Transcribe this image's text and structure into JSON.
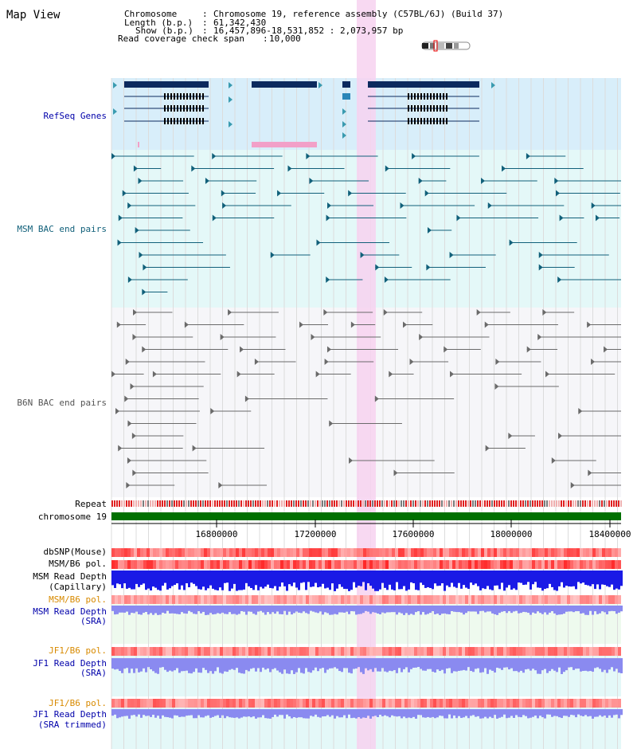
{
  "title": "Map View",
  "info": [
    {
      "key": "Chromosome",
      "value": "Chromosome 19, reference assembly (C57BL/6J) (Build 37)"
    },
    {
      "key": "Length (b.p.)",
      "value": "61,342,430"
    },
    {
      "key": "Show (b.p.)",
      "value": "16,457,896-18,531,852 : 2,073,957 bp"
    }
  ],
  "read_span": {
    "key": "Read coverage check span",
    "value": "10,000"
  },
  "tracks": {
    "refseq": "RefSeq Genes",
    "msm_bac": "MSM BAC end pairs",
    "b6n_bac": "B6N BAC end pairs",
    "repeat": "Repeat",
    "chromosome": "chromosome 19",
    "dbsnp": "dbSNP(Mouse)",
    "msm_b6_pol_1": "MSM/B6 pol.",
    "msm_read_cap_1": "MSM Read Depth",
    "msm_read_cap_2": "(Capillary)",
    "msm_b6_pol_2": "MSM/B6 pol.",
    "msm_read_sra_1": "MSM Read Depth",
    "msm_read_sra_2": "(SRA)",
    "jf1_b6_pol_1": "JF1/B6 pol.",
    "jf1_read_sra_1": "JF1 Read Depth",
    "jf1_read_sra_2": "(SRA)",
    "jf1_b6_pol_2": "JF1/B6 pol.",
    "jf1_read_trim_1": "JF1 Read Depth",
    "jf1_read_trim_2": "(SRA trimmed)"
  },
  "axis_ticks": [
    "16800000",
    "17200000",
    "17600000",
    "18000000",
    "18400000"
  ],
  "colors": {
    "refseq_bg": "#d8eefa",
    "msm_bg": "#e4f8f8",
    "b6n_bg": "#f6f6f9",
    "highlight": "#f7d2f0",
    "gene": "#0b2a5e",
    "msm_feature": "#11607a",
    "b6n_feature": "#6a6a6a",
    "chromosome_bar": "#007000",
    "depth_blue": "#1a1ae6",
    "depth_light_blue": "#8a8af0",
    "orange_label": "#d88a00",
    "blue_label": "#0000aa"
  }
}
